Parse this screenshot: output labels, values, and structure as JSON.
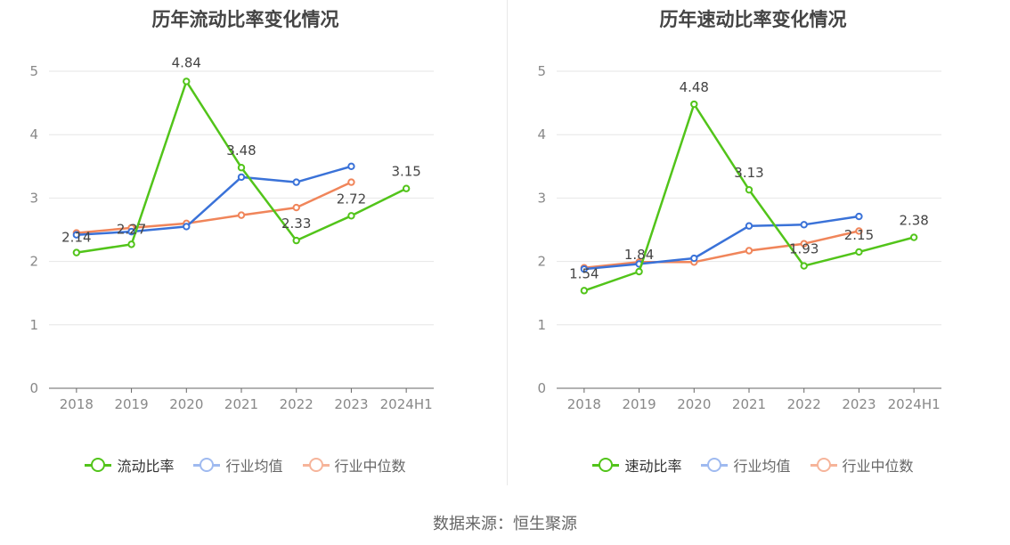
{
  "source": "数据来源：恒生聚源",
  "colors": {
    "primary": "#52c41a",
    "avg": "#3a72d8",
    "median": "#f0855a"
  },
  "chart_data": [
    {
      "type": "line",
      "title": "历年流动比率变化情况",
      "categories": [
        "2018",
        "2019",
        "2020",
        "2021",
        "2022",
        "2023",
        "2024H1"
      ],
      "ylim": [
        0,
        5
      ],
      "yticks": [
        "0",
        "1",
        "2",
        "3",
        "4",
        "5"
      ],
      "grid": true,
      "legend_position": "bottom",
      "series": [
        {
          "name": "流动比率",
          "color": "#52c41a",
          "values": [
            2.14,
            2.27,
            4.84,
            3.48,
            2.33,
            2.72,
            3.15
          ],
          "labels": [
            "2.14",
            "2.27",
            "4.84",
            "3.48",
            "2.33",
            "2.72",
            "3.15"
          ]
        },
        {
          "name": "行业均值",
          "color": "#3a72d8",
          "values": [
            2.42,
            2.47,
            2.55,
            3.33,
            3.25,
            3.5,
            null
          ]
        },
        {
          "name": "行业中位数",
          "color": "#f0855a",
          "values": [
            2.45,
            2.53,
            2.6,
            2.73,
            2.85,
            3.25,
            null
          ]
        }
      ]
    },
    {
      "type": "line",
      "title": "历年速动比率变化情况",
      "categories": [
        "2018",
        "2019",
        "2020",
        "2021",
        "2022",
        "2023",
        "2024H1"
      ],
      "ylim": [
        0,
        5
      ],
      "yticks": [
        "0",
        "1",
        "2",
        "3",
        "4",
        "5"
      ],
      "grid": true,
      "legend_position": "bottom",
      "series": [
        {
          "name": "速动比率",
          "color": "#52c41a",
          "values": [
            1.54,
            1.84,
            4.48,
            3.13,
            1.93,
            2.15,
            2.38
          ],
          "labels": [
            "1.54",
            "1.84",
            "4.48",
            "3.13",
            "1.93",
            "2.15",
            "2.38"
          ]
        },
        {
          "name": "行业均值",
          "color": "#3a72d8",
          "values": [
            1.88,
            1.96,
            2.05,
            2.56,
            2.58,
            2.71,
            null
          ]
        },
        {
          "name": "行业中位数",
          "color": "#f0855a",
          "values": [
            1.9,
            1.99,
            1.99,
            2.17,
            2.28,
            2.48,
            null
          ]
        }
      ]
    }
  ]
}
